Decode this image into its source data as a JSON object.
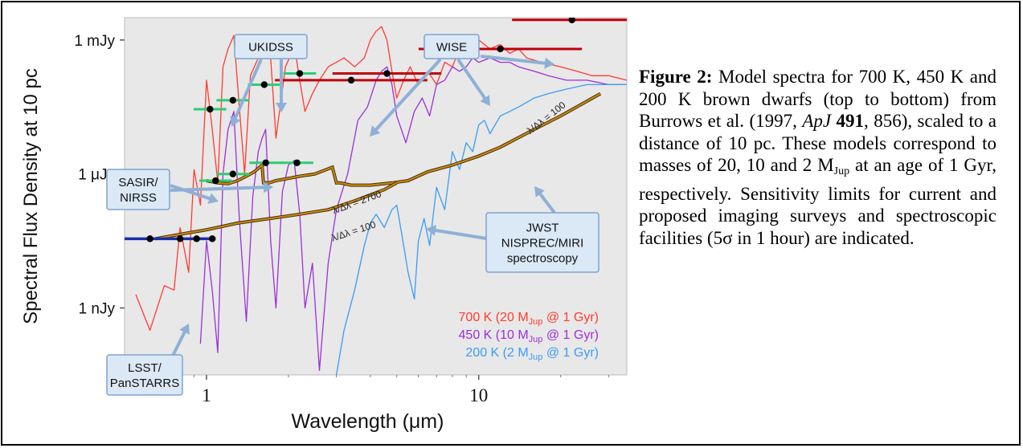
{
  "figure": {
    "caption": {
      "label": "Figure 2:",
      "text_a": " Model spectra for 700 K, 450 K and 200 K brown dwarfs (top to bottom) from Burrows et al. (1997, ",
      "journal": "ApJ",
      "volume": "491",
      "text_b": ", 856), scaled to a distance of 10 pc.  These models correspond to masses of 20, 10 and 2 M",
      "mass_subscript": "Jup",
      "text_c": " at an age of 1 Gyr, respectively. Sensitivity limits for current and proposed imaging surveys and spectroscopic facilities (5σ in 1 hour) are indicated."
    }
  },
  "chart_data": {
    "type": "line",
    "title": "",
    "xlabel": "Wavelength (μm)",
    "ylabel": "Spectral Flux Density at 10 pc",
    "x_scale": "log",
    "y_scale": "log",
    "xlim": [
      0.5,
      35
    ],
    "ylim_decades": [
      -10.5,
      -2.5
    ],
    "x_ticks": [
      {
        "value": 1,
        "label": "1"
      },
      {
        "value": 10,
        "label": "10"
      }
    ],
    "y_ticks": [
      {
        "value": -3,
        "label": "1 mJy"
      },
      {
        "value": -6,
        "label": "1 μJy"
      },
      {
        "value": -9,
        "label": "1 nJy"
      }
    ],
    "background": "#e8e8e8",
    "series": [
      {
        "name": "700 K (20 M_Jup @ 1 Gyr)",
        "label_main": "700 K (20 M",
        "label_sub": "Jup",
        "label_tail": " @ 1 Gyr)",
        "color": "#ff3b30",
        "x": [
          0.55,
          0.62,
          0.7,
          0.76,
          0.8,
          0.86,
          0.9,
          0.95,
          1.0,
          1.05,
          1.1,
          1.15,
          1.2,
          1.26,
          1.32,
          1.38,
          1.45,
          1.55,
          1.6,
          1.7,
          1.8,
          1.95,
          2.05,
          2.1,
          2.2,
          2.3,
          2.45,
          2.6,
          2.8,
          3.0,
          3.2,
          3.5,
          3.8,
          4.0,
          4.2,
          4.4,
          4.6,
          4.8,
          5.0,
          5.3,
          5.6,
          6.0,
          6.5,
          7.0,
          7.5,
          8.0,
          8.5,
          9.0,
          9.5,
          10,
          11,
          12,
          13,
          14,
          15,
          17,
          20,
          23,
          26,
          30,
          35
        ],
        "y": [
          -8.7,
          -9.5,
          -8.5,
          -8.6,
          -7.2,
          -8.2,
          -5.9,
          -6.7,
          -3.9,
          -5.0,
          -6.2,
          -3.6,
          -3.2,
          -2.9,
          -4.5,
          -6.0,
          -3.8,
          -3.4,
          -3.1,
          -2.9,
          -5.2,
          -3.6,
          -3.3,
          -3.1,
          -3.9,
          -4.6,
          -4.2,
          -3.9,
          -3.6,
          -3.5,
          -3.4,
          -3.6,
          -3.4,
          -3.0,
          -2.8,
          -2.7,
          -3.0,
          -3.7,
          -4.3,
          -3.9,
          -3.6,
          -4.0,
          -3.7,
          -4.0,
          -3.5,
          -3.6,
          -3.2,
          -3.1,
          -3.2,
          -3.0,
          -3.2,
          -3.1,
          -3.3,
          -3.2,
          -3.4,
          -3.5,
          -3.6,
          -3.7,
          -3.8,
          -3.8,
          -3.9
        ]
      },
      {
        "name": "450 K (10 M_Jup @ 1 Gyr)",
        "label_main": "450 K (10 M",
        "label_sub": "Jup",
        "label_tail": " @ 1 Gyr)",
        "color": "#9b30d9",
        "x": [
          0.95,
          1.0,
          1.05,
          1.1,
          1.15,
          1.2,
          1.26,
          1.32,
          1.4,
          1.48,
          1.55,
          1.6,
          1.65,
          1.72,
          1.8,
          1.9,
          2.0,
          2.1,
          2.2,
          2.3,
          2.45,
          2.6,
          2.8,
          3.0,
          3.3,
          3.6,
          3.9,
          4.2,
          4.4,
          4.6,
          4.8,
          5.0,
          5.4,
          5.8,
          6.2,
          6.6,
          7.0,
          7.5,
          8.0,
          8.5,
          9.0,
          9.5,
          10,
          11,
          12,
          13,
          14,
          16,
          18,
          21,
          25,
          30,
          35
        ],
        "y": [
          -9.8,
          -7.5,
          -8.6,
          -10.0,
          -6.0,
          -5.0,
          -4.6,
          -7.0,
          -9.3,
          -6.5,
          -5.5,
          -5.2,
          -5.0,
          -7.5,
          -9.0,
          -6.4,
          -5.8,
          -5.7,
          -6.9,
          -9.0,
          -8.0,
          -10.4,
          -8.0,
          -6.8,
          -6.0,
          -4.8,
          -4.5,
          -3.9,
          -3.7,
          -3.6,
          -4.0,
          -4.7,
          -5.3,
          -4.6,
          -4.3,
          -4.7,
          -4.0,
          -3.9,
          -3.6,
          -3.7,
          -3.6,
          -3.4,
          -3.5,
          -3.4,
          -3.5,
          -3.5,
          -3.6,
          -3.7,
          -3.8,
          -3.9,
          -3.9,
          -4.0,
          -4.0
        ]
      },
      {
        "name": "200 K (2 M_Jup @ 1 Gyr)",
        "label_main": "200 K (2 M",
        "label_sub": "Jup",
        "label_tail": " @ 1 Gyr)",
        "color": "#3a9cf5",
        "x": [
          3.0,
          3.2,
          3.5,
          3.8,
          4.0,
          4.2,
          4.5,
          4.8,
          5.0,
          5.2,
          5.5,
          5.8,
          6.0,
          6.3,
          6.6,
          7.0,
          7.5,
          8.0,
          8.5,
          9.0,
          9.5,
          10,
          10.5,
          11,
          12,
          13,
          14,
          16,
          18,
          21,
          25,
          30,
          35
        ],
        "y": [
          -10.5,
          -9.5,
          -8.6,
          -7.6,
          -7.1,
          -6.9,
          -7.2,
          -6.8,
          -6.7,
          -7.3,
          -8.2,
          -8.8,
          -7.5,
          -7.0,
          -7.6,
          -6.3,
          -6.8,
          -5.5,
          -5.9,
          -5.3,
          -5.5,
          -4.9,
          -4.8,
          -5.1,
          -4.7,
          -4.6,
          -4.5,
          -4.3,
          -4.2,
          -4.1,
          -4.0,
          -4.0,
          -4.0
        ]
      }
    ],
    "sensitivity_curves": [
      {
        "label": "λ/Δλ = 2700",
        "x": [
          1.0,
          1.1,
          1.2,
          1.3,
          1.4,
          1.5,
          1.6,
          1.62,
          1.7,
          1.8,
          2.0,
          2.2,
          2.5,
          2.9,
          3.0,
          3.1,
          3.4,
          4.0,
          4.8,
          5.5,
          6.5,
          8.0,
          10,
          12,
          16,
          20,
          28
        ],
        "y": [
          -6.15,
          -6.2,
          -6.22,
          -6.15,
          -6.05,
          -5.95,
          -5.8,
          -6.2,
          -6.2,
          -6.15,
          -6.1,
          -6.05,
          -6.0,
          -5.85,
          -6.2,
          -6.2,
          -6.25,
          -6.25,
          -6.2,
          -6.15,
          -5.95,
          -5.8,
          -5.6,
          -5.4,
          -5.0,
          -4.7,
          -4.2
        ]
      },
      {
        "label": "λ/Δλ = 100",
        "x": [
          0.65,
          0.8,
          1.0,
          1.3,
          1.7,
          2.2,
          2.8,
          3.5,
          4.5,
          5.0
        ],
        "y": [
          -7.45,
          -7.35,
          -7.25,
          -7.1,
          -7.0,
          -6.9,
          -6.8,
          -6.6,
          -6.35,
          -6.2
        ]
      }
    ],
    "lambda_labels": [
      {
        "text": "λ/Δλ = 2700",
        "x": 3.6,
        "y": -6.7
      },
      {
        "text": "λ/Δλ = 100",
        "x": 3.5,
        "y": -7.35
      },
      {
        "text": "λ/Δλ = 100",
        "x": 18,
        "y": -4.8
      }
    ],
    "survey_limits": [
      {
        "survey": "LSST/PanSTARRS",
        "color": "#1a2ea8",
        "x": [
          0.62,
          0.8,
          0.92,
          1.05
        ],
        "y": [
          -7.45,
          -7.45,
          -7.45,
          -7.45
        ],
        "bar_x": [
          0.5,
          1.08
        ]
      },
      {
        "survey": "UKIDSS",
        "color": "#2ecc71",
        "x": [
          1.03,
          1.25,
          1.63,
          2.2
        ],
        "y": [
          -4.55,
          -4.35,
          -4.0,
          -3.75
        ]
      },
      {
        "survey": "SASIR/NIRSS",
        "color": "#2ecc71",
        "x": [
          1.08,
          1.25,
          1.65,
          2.15
        ],
        "y": [
          -6.15,
          -6.0,
          -5.75,
          -5.75
        ]
      },
      {
        "survey": "WISE",
        "color": "#c0000a",
        "x": [
          3.4,
          4.6,
          12,
          22
        ],
        "y": [
          -3.9,
          -3.75,
          -3.2,
          -2.55
        ],
        "halfwidth": [
          0.28,
          0.2,
          0.3,
          0.22
        ]
      }
    ],
    "callouts": [
      {
        "name": "ukidss",
        "lines": [
          "UKIDSS"
        ]
      },
      {
        "name": "wise",
        "lines": [
          "WISE"
        ]
      },
      {
        "name": "sasir",
        "lines": [
          "SASIR/",
          "NIRSS"
        ]
      },
      {
        "name": "jwst",
        "lines": [
          "JWST",
          "NISPREC/MIRI",
          "spectroscopy"
        ]
      },
      {
        "name": "lsst",
        "lines": [
          "LSST/",
          "PanSTARRS"
        ]
      }
    ]
  }
}
